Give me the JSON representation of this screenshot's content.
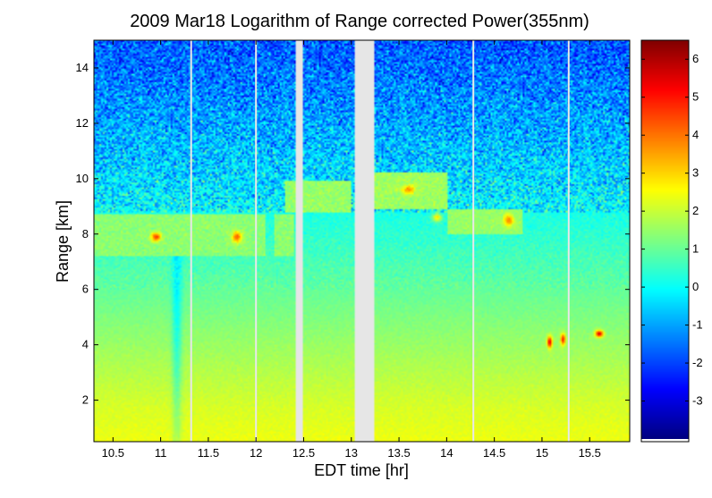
{
  "chart_data": {
    "type": "heatmap",
    "title": "2009 Mar18  Logarithm of Range corrected Power(355nm)",
    "xlabel": "EDT time [hr]",
    "ylabel": "Range [km]",
    "xlim": [
      10.3,
      15.92
    ],
    "ylim": [
      0.5,
      15.0
    ],
    "x_ticks": [
      10.5,
      11,
      11.5,
      12,
      12.5,
      13,
      13.5,
      14,
      14.5,
      15,
      15.5
    ],
    "x_tick_labels": [
      "10.5",
      "11",
      "11.5",
      "12",
      "12.5",
      "13",
      "13.5",
      "14",
      "14.5",
      "15",
      "15.5"
    ],
    "y_ticks": [
      2,
      4,
      6,
      8,
      10,
      12,
      14
    ],
    "y_tick_labels": [
      "2",
      "4",
      "6",
      "8",
      "10",
      "12",
      "14"
    ],
    "colorbar": {
      "colormap": "jet",
      "range": [
        -4.0,
        6.5
      ],
      "ticks": [
        -3,
        -2,
        -1,
        0,
        1,
        2,
        3,
        4,
        5,
        6
      ],
      "tick_labels": [
        "-3",
        "-2",
        "-1",
        "0",
        "1",
        "2",
        "3",
        "4",
        "5",
        "6"
      ]
    },
    "no_data_intervals": [
      [
        12.42,
        12.5
      ],
      [
        13.03,
        13.24
      ]
    ],
    "thin_gaps_hr": [
      11.32,
      12.0,
      14.28,
      15.28
    ],
    "features": {
      "cloud_layer_km": [
        7.2,
        8.7
      ],
      "upper_cloud_km": [
        8.7,
        10.0
      ],
      "low_cloud_patches": [
        [
          15.1,
          4.1
        ],
        [
          15.5,
          4.5
        ]
      ],
      "boundary_layer_top_km": 1.6,
      "high_noise_above_km": 8.8
    },
    "grid": false
  },
  "colors": {
    "gap": "#e6e6e6",
    "colormap_jet_stops": [
      "#00007f",
      "#0000ff",
      "#007fff",
      "#00ffff",
      "#7fff7f",
      "#ffff00",
      "#ff7f00",
      "#ff0000",
      "#7f0000"
    ]
  }
}
